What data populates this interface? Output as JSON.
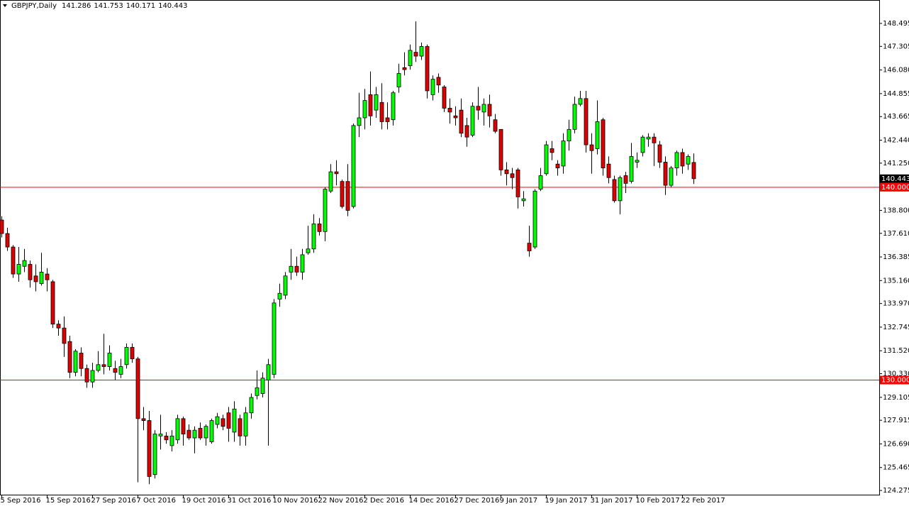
{
  "chart_data": {
    "type": "candlestick",
    "title": "GBPJPY,Daily",
    "up_color": "#00ff00",
    "down_color": "#e00000",
    "categories": [
      "5 Sep 2016",
      null,
      null,
      null,
      null,
      null,
      null,
      null,
      "15 Sep 2016",
      null,
      null,
      null,
      null,
      null,
      null,
      null,
      "27 Sep 2016",
      null,
      null,
      null,
      null,
      null,
      null,
      null,
      "7 Oct 2016",
      null,
      null,
      null,
      null,
      null,
      null,
      null,
      "19 Oct 2016",
      null,
      null,
      null,
      null,
      null,
      null,
      null,
      "31 Oct 2016",
      null,
      null,
      null,
      null,
      null,
      null,
      null,
      "10 Nov 2016",
      null,
      null,
      null,
      null,
      null,
      null,
      null,
      "22 Nov 2016",
      null,
      null,
      null,
      null,
      null,
      null,
      null,
      "2 Dec 2016",
      null,
      null,
      null,
      null,
      null,
      null,
      null,
      "14 Dec 2016",
      null,
      null,
      null,
      null,
      null,
      null,
      null,
      "27 Dec 2016",
      null,
      null,
      null,
      null,
      null,
      null,
      null,
      "9 Jan 2017",
      null,
      null,
      null,
      null,
      null,
      null,
      null,
      "19 Jan 2017",
      null,
      null,
      null,
      null,
      null,
      null,
      null,
      "31 Jan 2017",
      null,
      null,
      null,
      null,
      null,
      null,
      null,
      "10 Feb 2017",
      null,
      null,
      null,
      null,
      null,
      null,
      null,
      "22 Feb 2017",
      null,
      null
    ],
    "open": [
      138.3,
      137.6,
      136.9,
      135.5,
      135.9,
      136.0,
      135.4,
      135.0,
      135.5,
      135.1,
      132.9,
      132.7,
      132.0,
      130.4,
      131.4,
      130.6,
      129.9,
      130.5,
      130.8,
      130.7,
      130.6,
      130.3,
      130.8,
      131.7,
      131.1,
      128.0,
      127.9,
      125.1,
      127.1,
      127.1,
      126.6,
      126.9,
      128.0,
      127.4,
      127.0,
      127.5,
      127.0,
      126.8,
      127.7,
      128.0,
      128.3,
      127.3,
      128.0,
      127.1,
      128.3,
      129.2,
      129.3,
      130.0,
      130.3,
      134.2,
      134.4,
      135.6,
      135.9,
      135.6,
      136.6,
      136.8,
      138.1,
      137.7,
      139.8,
      140.8,
      140.3,
      140.3,
      139.0,
      143.2,
      143.6,
      144.8,
      144.0,
      144.4,
      143.6,
      143.5,
      145.2,
      146.2,
      146.3,
      147.0,
      146.8,
      147.3,
      144.8,
      145.7,
      145.2,
      144.1,
      143.7,
      144.0,
      143.2,
      142.7,
      144.2,
      143.9,
      144.3,
      143.5,
      143.0,
      140.9,
      140.7,
      140.9,
      139.3,
      137.1,
      136.9,
      139.9,
      140.7,
      142.0,
      141.2,
      141.1,
      142.4,
      143.0,
      144.3,
      144.6,
      142.2,
      142.0,
      143.5,
      141.2,
      140.4,
      139.3,
      140.6,
      140.3,
      141.3,
      141.8,
      142.5,
      142.6,
      142.2,
      141.3,
      140.1,
      141.0,
      141.8,
      141.2,
      141.286
    ],
    "high": [
      138.5,
      137.9,
      137.0,
      136.9,
      136.8,
      136.2,
      136.0,
      136.6,
      135.8,
      135.2,
      133.1,
      133.3,
      132.3,
      131.6,
      131.7,
      130.8,
      130.9,
      131.5,
      132.4,
      131.8,
      131.0,
      131.1,
      131.9,
      131.9,
      131.2,
      128.6,
      128.4,
      127.4,
      128.2,
      127.3,
      127.4,
      128.2,
      128.1,
      127.7,
      127.6,
      127.8,
      127.7,
      128.0,
      128.3,
      128.2,
      128.6,
      128.9,
      128.2,
      128.6,
      129.3,
      130.5,
      130.4,
      131.1,
      134.2,
      135.0,
      135.6,
      136.8,
      136.4,
      136.8,
      138.0,
      138.6,
      138.4,
      140.0,
      141.2,
      141.4,
      140.4,
      141.2,
      143.3,
      144.9,
      145.1,
      146.0,
      145.2,
      145.4,
      144.4,
      145.0,
      146.4,
      147.0,
      147.4,
      148.6,
      147.5,
      147.4,
      145.8,
      145.9,
      145.3,
      144.6,
      144.2,
      144.6,
      143.6,
      144.4,
      145.2,
      144.6,
      144.8,
      143.8,
      143.0,
      141.3,
      141.0,
      141.0,
      139.8,
      138.0,
      139.9,
      141.0,
      142.4,
      142.4,
      141.4,
      142.8,
      143.5,
      144.7,
      145.0,
      145.0,
      142.8,
      144.5,
      143.6,
      141.6,
      140.6,
      140.6,
      140.8,
      142.3,
      141.8,
      142.7,
      142.8,
      142.8,
      142.4,
      141.6,
      141.1,
      141.9,
      142.0,
      141.7,
      141.753
    ],
    "low": [
      137.4,
      136.7,
      135.3,
      135.1,
      135.6,
      134.8,
      134.6,
      134.9,
      134.6,
      132.7,
      132.3,
      131.2,
      130.1,
      130.2,
      130.2,
      129.6,
      129.6,
      130.4,
      130.3,
      130.5,
      130.0,
      130.1,
      130.6,
      130.9,
      124.7,
      127.4,
      124.6,
      124.9,
      126.4,
      126.7,
      126.3,
      126.7,
      126.6,
      126.9,
      126.2,
      126.9,
      126.6,
      126.7,
      127.5,
      127.4,
      126.8,
      126.8,
      126.6,
      126.6,
      128.0,
      129.0,
      129.1,
      126.6,
      130.1,
      133.8,
      134.2,
      135.2,
      135.4,
      135.2,
      136.5,
      136.6,
      137.5,
      137.2,
      139.7,
      140.1,
      138.9,
      138.5,
      138.9,
      142.6,
      143.0,
      143.2,
      143.6,
      143.0,
      143.0,
      143.2,
      144.9,
      145.8,
      146.1,
      146.5,
      146.6,
      144.6,
      144.5,
      144.9,
      143.9,
      143.3,
      143.2,
      142.6,
      142.1,
      142.6,
      143.5,
      143.2,
      143.1,
      142.8,
      140.6,
      140.1,
      139.9,
      138.9,
      139.0,
      136.4,
      136.8,
      139.8,
      140.6,
      141.4,
      140.6,
      140.7,
      141.9,
      142.8,
      144.2,
      141.8,
      140.7,
      141.7,
      140.6,
      140.2,
      139.2,
      138.6,
      139.7,
      140.2,
      141.0,
      141.6,
      142.1,
      141.1,
      141.0,
      139.6,
      140.0,
      140.6,
      140.7,
      140.9,
      140.171
    ],
    "close": [
      137.6,
      136.9,
      135.5,
      136.0,
      136.2,
      135.2,
      135.1,
      135.6,
      135.2,
      132.9,
      132.7,
      131.9,
      130.4,
      131.5,
      130.6,
      129.9,
      130.5,
      130.8,
      130.7,
      131.4,
      130.4,
      130.7,
      131.7,
      131.1,
      128.0,
      127.9,
      125.0,
      127.2,
      127.2,
      126.9,
      127.1,
      128.0,
      127.2,
      127.0,
      127.4,
      127.0,
      127.6,
      127.9,
      128.1,
      127.6,
      127.5,
      128.5,
      127.1,
      128.3,
      129.1,
      129.6,
      130.1,
      130.8,
      134.0,
      134.5,
      135.4,
      135.9,
      135.6,
      136.5,
      136.8,
      138.1,
      137.7,
      139.9,
      140.8,
      140.7,
      139.0,
      138.8,
      143.2,
      143.6,
      144.5,
      143.7,
      144.8,
      143.4,
      143.4,
      144.9,
      145.9,
      146.1,
      147.1,
      146.8,
      147.3,
      145.0,
      145.6,
      145.3,
      144.1,
      143.9,
      143.6,
      142.8,
      142.6,
      144.2,
      144.0,
      144.3,
      143.7,
      142.9,
      140.9,
      140.7,
      140.5,
      139.5,
      139.4,
      136.7,
      139.8,
      140.6,
      142.2,
      141.8,
      141.0,
      142.4,
      143.0,
      144.3,
      144.6,
      142.2,
      141.9,
      143.4,
      141.0,
      140.5,
      139.3,
      140.5,
      140.2,
      141.6,
      141.4,
      142.6,
      142.6,
      142.3,
      141.3,
      140.1,
      141.0,
      141.8,
      141.1,
      141.6,
      140.443
    ],
    "ylim": [
      124.02,
      149.71
    ],
    "yticks": [
      148.495,
      147.305,
      {
        "value": 146.08,
        "label": "146.080"
      },
      144.855,
      143.665,
      {
        "value": 142.44,
        "label": "142.440"
      },
      {
        "value": 141.25,
        "label": "141.250"
      },
      {
        "value": 138.8,
        "label": "138.800"
      },
      {
        "value": 137.61,
        "label": "137.610"
      },
      136.385,
      {
        "value": 135.16,
        "label": "135.160"
      },
      {
        "value": 133.97,
        "label": "133.970"
      },
      132.745,
      {
        "value": 131.52,
        "label": "131.520"
      },
      {
        "value": 130.33,
        "label": "130.330"
      },
      129.105,
      127.915,
      {
        "value": 126.69,
        "label": "126.690"
      },
      125.465,
      124.275
    ],
    "hlines": [
      {
        "value": 140,
        "label": "140.000"
      },
      {
        "value": 130,
        "label": "130.000"
      }
    ],
    "hline_color": "#ff0000"
  }
}
